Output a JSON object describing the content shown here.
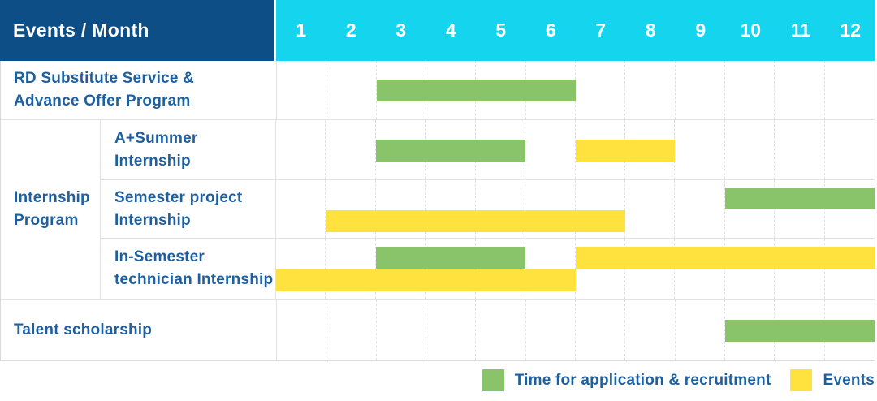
{
  "header": {
    "events_month_label": "Events / Month",
    "months": [
      "1",
      "2",
      "3",
      "4",
      "5",
      "6",
      "7",
      "8",
      "9",
      "10",
      "11",
      "12"
    ]
  },
  "colors": {
    "header_background": "#0d4e87",
    "months_background": "#15d5ee",
    "label_text": "#1d5f9f",
    "application_green": "#8ac46a",
    "events_yellow": "#ffe23e"
  },
  "legend": {
    "items": [
      {
        "series": "application",
        "label": "Time for application & recruitment"
      },
      {
        "series": "events",
        "label": "Events"
      }
    ]
  },
  "chart_data": {
    "type": "gantt",
    "title": "Events / Month",
    "x_axis": {
      "label": "Month",
      "ticks": [
        1,
        2,
        3,
        4,
        5,
        6,
        7,
        8,
        9,
        10,
        11,
        12
      ],
      "range": [
        1,
        12
      ],
      "grid": "dashed-vertical"
    },
    "series": [
      {
        "id": "application",
        "name": "Time for application & recruitment",
        "color": "#8ac46a"
      },
      {
        "id": "events",
        "name": "Events",
        "color": "#ffe23e"
      }
    ],
    "rows": [
      {
        "id": "rd-substitute",
        "label": "RD Substitute Service & Advance Offer Program",
        "label_lines": [
          "RD Substitute Service &",
          "Advance Offer Program"
        ],
        "bars": [
          {
            "series": "application",
            "start_month": 3,
            "end_month": 6,
            "lane": "center"
          }
        ]
      },
      {
        "id": "internship-program",
        "group_label": "Internship Program",
        "group_label_lines": [
          "Internship",
          "Program"
        ],
        "children": [
          {
            "id": "a-plus-summer",
            "label": "A+Summer Internship",
            "label_lines": [
              "A+Summer",
              "Internship"
            ],
            "bars": [
              {
                "series": "application",
                "start_month": 3,
                "end_month": 5,
                "lane": "center"
              },
              {
                "series": "events",
                "start_month": 7,
                "end_month": 8,
                "lane": "center"
              }
            ]
          },
          {
            "id": "semester-project",
            "label": "Semester project Internship",
            "label_lines": [
              "Semester project",
              "Internship"
            ],
            "bars": [
              {
                "series": "application",
                "start_month": 10,
                "end_month": 12,
                "lane": "top"
              },
              {
                "series": "events",
                "start_month": 2,
                "end_month": 7,
                "lane": "bottom"
              }
            ]
          },
          {
            "id": "in-semester",
            "label": "In-Semester technician Internship",
            "label_lines": [
              "In-Semester",
              "technician Internship"
            ],
            "bars": [
              {
                "series": "application",
                "start_month": 3,
                "end_month": 5,
                "lane": "top"
              },
              {
                "series": "events",
                "start_month": 7,
                "end_month": 12,
                "lane": "top"
              },
              {
                "series": "events",
                "start_month": 1,
                "end_month": 6,
                "lane": "bottom"
              }
            ]
          }
        ]
      },
      {
        "id": "talent-scholarship",
        "label": "Talent scholarship",
        "label_lines": [
          "Talent scholarship"
        ],
        "bars": [
          {
            "series": "application",
            "start_month": 10,
            "end_month": 12,
            "lane": "center"
          }
        ]
      }
    ]
  }
}
